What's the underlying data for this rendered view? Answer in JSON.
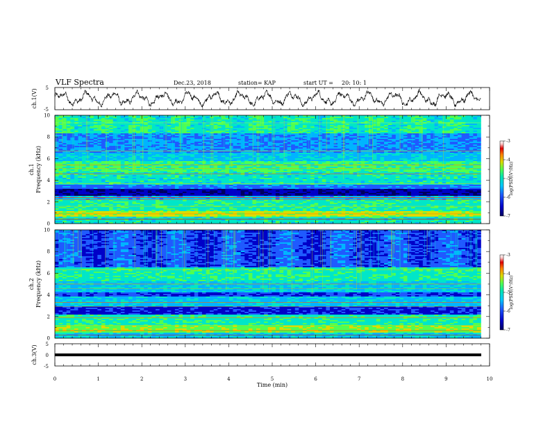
{
  "header": {
    "title": "VLF Spectra",
    "date": "Dec.23, 2018",
    "station": "station= KAP",
    "start_label": "start  UT =",
    "start_time": "20: 10: 1"
  },
  "chart_data": [
    {
      "type": "line",
      "panel": "waveform-ch1",
      "ylabel": "ch.1(V)",
      "ylim": [
        -5,
        5
      ],
      "yticks": [
        "5",
        "-5"
      ],
      "xlim": [
        0,
        10
      ],
      "line_color": "#000000"
    },
    {
      "type": "heatmap",
      "panel": "spectrogram-ch1",
      "ylabel_top": "ch.1",
      "ylabel": "Frequency (kHz)",
      "ylim": [
        0,
        10
      ],
      "yticks": [
        "0",
        "2",
        "4",
        "6",
        "8",
        "10"
      ],
      "xlim": [
        0,
        10
      ],
      "data_end_min": 9.8,
      "colorbar": {
        "label": "log(PSD)(V²/Hz)",
        "range": [
          -7,
          -3
        ],
        "ticks": [
          "-3",
          "-4",
          "-5",
          "-6",
          "-7"
        ]
      }
    },
    {
      "type": "heatmap",
      "panel": "spectrogram-ch2",
      "ylabel_top": "ch.2",
      "ylabel": "Frequency (kHz)",
      "ylim": [
        0,
        10
      ],
      "yticks": [
        "0",
        "2",
        "4",
        "6",
        "8",
        "10"
      ],
      "xlim": [
        0,
        10
      ],
      "data_end_min": 9.8,
      "colorbar": {
        "label": "log(PSD)(V²/Hz)",
        "range": [
          -7,
          -3
        ],
        "ticks": [
          "-3",
          "-4",
          "-5",
          "-6",
          "-7"
        ]
      }
    },
    {
      "type": "line",
      "panel": "waveform-ch3",
      "ylabel": "ch.3(V)",
      "ylim": [
        -5,
        5
      ],
      "yticks": [
        "5",
        "0",
        "-5"
      ],
      "xlim": [
        0,
        10
      ],
      "line_color": "#000000"
    }
  ],
  "xaxis": {
    "label": "Time  (min)",
    "ticks": [
      "0",
      "1",
      "2",
      "3",
      "4",
      "5",
      "6",
      "7",
      "8",
      "9",
      "10"
    ]
  },
  "colorscale": [
    "#000060",
    "#0000c8",
    "#1f5aff",
    "#00b4ff",
    "#00e6c8",
    "#50ff50",
    "#dcdc00",
    "#ff8000",
    "#e00000",
    "#ffc8c8",
    "#ffffff"
  ]
}
